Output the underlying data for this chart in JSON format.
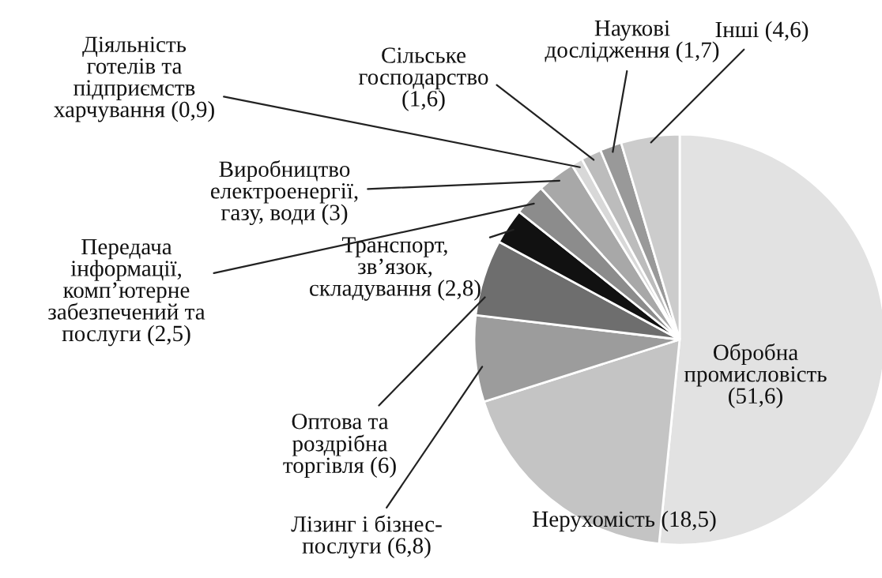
{
  "chart_data": {
    "type": "pie",
    "categories": [
      "Обробна промисловість",
      "Нерухомість",
      "Лізинг і бізнес-послуги",
      "Оптова та роздрібна торгівля",
      "Транспорт, зв’язок, складування",
      "Передача інформації, комп’ютерне забезпечений та послуги",
      "Виробництво електроенергії, газу, води",
      "Діяльність готелів та підприємств харчування",
      "Сільське господарство",
      "Наукові дослідження",
      "Інші"
    ],
    "values": [
      51.6,
      18.5,
      6.8,
      6,
      2.8,
      2.5,
      3,
      0.9,
      1.6,
      1.7,
      4.6
    ],
    "value_labels": [
      "(51,6)",
      "(18,5)",
      "(6,8)",
      "(6)",
      "(2,8)",
      "(2,5)",
      "(3)",
      "(0,9)",
      "(1,6)",
      "(1,7)",
      "(4,6)"
    ],
    "colors": [
      "#e2e2e2",
      "#c4c4c4",
      "#9c9c9c",
      "#6e6e6e",
      "#111111",
      "#8c8c8c",
      "#a8a8a8",
      "#d8d8d8",
      "#bcbcbc",
      "#999999",
      "#cccccc"
    ]
  }
}
